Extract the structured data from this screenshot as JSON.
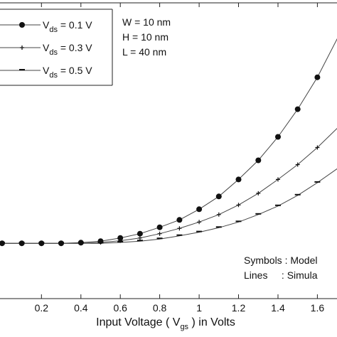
{
  "chart_data": {
    "type": "line",
    "title": "",
    "xlabel": {
      "pre": "Input Voltage ( V",
      "sub": "gs",
      "post": " ) in Volts"
    },
    "ylabel": "",
    "xlim": [
      -0.05,
      1.75
    ],
    "ylim": [
      -0.26,
      1.13
    ],
    "x_ticks": [
      0.2,
      0.4,
      0.6,
      0.8,
      1,
      1.2,
      1.4,
      1.6
    ],
    "x_tick_labels": [
      "0.2",
      "0.4",
      "0.6",
      "0.8",
      "1",
      "1.2",
      "1.4",
      "1.6"
    ],
    "grid": false,
    "legend_placement": "top-left",
    "x": [
      0,
      0.1,
      0.2,
      0.3,
      0.4,
      0.5,
      0.6,
      0.7,
      0.8,
      0.9,
      1.0,
      1.1,
      1.2,
      1.3,
      1.4,
      1.5,
      1.6,
      1.7,
      1.75
    ],
    "series": [
      {
        "label_main": "V",
        "label_sub": "ds",
        "label_value": " = 0.1 V",
        "marker": "filled-circle",
        "values": [
          0,
          0,
          0,
          0,
          0.003,
          0.01,
          0.025,
          0.045,
          0.075,
          0.11,
          0.16,
          0.22,
          0.3,
          0.39,
          0.5,
          0.63,
          0.78,
          0.96,
          1.05
        ]
      },
      {
        "label_main": "V",
        "label_sub": "ds",
        "label_value": " = 0.3 V",
        "marker": "tick",
        "values": [
          0,
          0,
          0,
          0,
          0,
          0.004,
          0.012,
          0.025,
          0.045,
          0.07,
          0.1,
          0.135,
          0.18,
          0.235,
          0.3,
          0.37,
          0.45,
          0.54,
          0.59
        ]
      },
      {
        "label_main": "V",
        "label_sub": "ds",
        "label_value": " = 0.5 V",
        "marker": "dash",
        "values": [
          0,
          0,
          0,
          0,
          0,
          0,
          0.004,
          0.01,
          0.02,
          0.035,
          0.052,
          0.073,
          0.1,
          0.135,
          0.175,
          0.225,
          0.285,
          0.35,
          0.385
        ]
      }
    ],
    "annotations": {
      "params": [
        "W = 10 nm",
        "H = 10 nm",
        "L =  40 nm"
      ],
      "notes": [
        "Symbols : Model",
        "Lines     : Simula"
      ]
    }
  }
}
